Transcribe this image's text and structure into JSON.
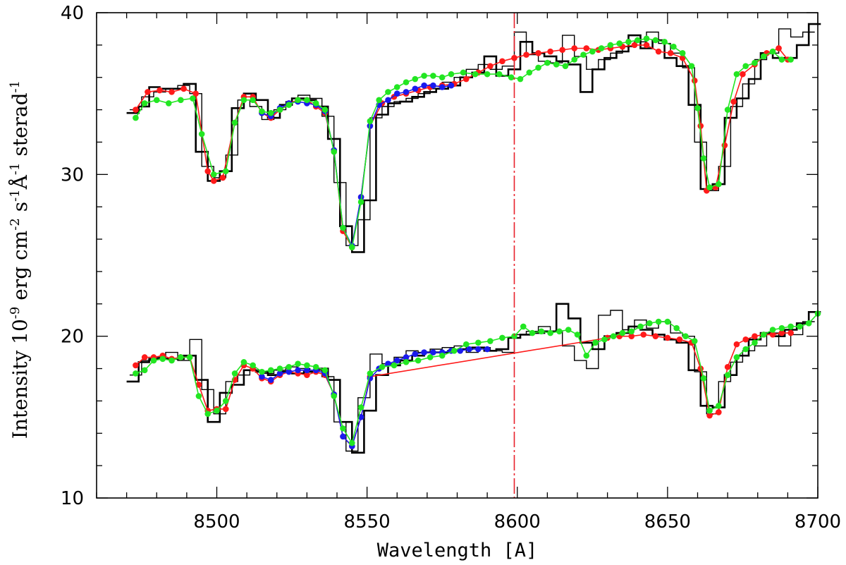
{
  "chart_data": {
    "type": "line",
    "xlabel": "Wavelength [A]",
    "ylabel": {
      "parts": [
        {
          "text": "Intensity 10"
        },
        {
          "text": "-9",
          "sup": true
        },
        {
          "text": " erg cm"
        },
        {
          "text": "-2",
          "sup": true
        },
        {
          "text": " s"
        },
        {
          "text": "-1",
          "sup": true
        },
        {
          "text": "Å"
        },
        {
          "text": "-1",
          "sup": true
        },
        {
          "text": " sterad"
        },
        {
          "text": "-1",
          "sup": true
        }
      ]
    },
    "xlim": [
      8460,
      8700
    ],
    "ylim": [
      10,
      40
    ],
    "x_ticks": [
      8500,
      8550,
      8600,
      8650,
      8700
    ],
    "y_ticks": [
      10,
      20,
      30,
      40
    ],
    "x_minor_step": 10,
    "y_minor_step": 2,
    "vline": {
      "x": 8599,
      "color": "#e8202a",
      "style": "dashed"
    },
    "colors": {
      "red": "#ff1a1a",
      "green": "#22e622",
      "blue": "#1a1aee",
      "black": "#000000"
    },
    "series": [
      {
        "color": "#000000",
        "width": 2.6,
        "style": "step",
        "x": [
          8472,
          8476,
          8479,
          8483,
          8487,
          8491,
          8495,
          8499,
          8503,
          8507,
          8511,
          8515,
          8519,
          8523,
          8527,
          8531,
          8535,
          8539,
          8543,
          8547,
          8551,
          8555,
          8559,
          8563,
          8567,
          8571,
          8575,
          8579,
          8583,
          8587,
          8591,
          8595,
          8599,
          8603,
          8607,
          8611,
          8615,
          8619,
          8623,
          8627,
          8631,
          8635,
          8639,
          8643,
          8647,
          8651,
          8655,
          8659,
          8663,
          8667,
          8671,
          8675,
          8679,
          8683,
          8687,
          8691,
          8695,
          8699
        ],
        "y": [
          33.8,
          34.2,
          35.4,
          35.3,
          35.3,
          35.6,
          31.4,
          29.6,
          30.2,
          34.1,
          35.0,
          34.6,
          33.5,
          34.3,
          34.7,
          34.6,
          34.2,
          32.2,
          26.8,
          25.2,
          28.4,
          33.7,
          34.4,
          34.5,
          34.8,
          35.1,
          35.3,
          35.5,
          36.0,
          36.3,
          37.3,
          36.1,
          36.5,
          38.2,
          37.5,
          37.3,
          37.0,
          36.8,
          35.1,
          36.5,
          37.2,
          37.6,
          38.6,
          37.8,
          38.3,
          37.2,
          36.7,
          34.3,
          29.1,
          29.4,
          33.5,
          34.7,
          35.9,
          37.5,
          37.2,
          37.2,
          38.0,
          39.3
        ]
      },
      {
        "color": "#000000",
        "width": 1.4,
        "style": "step",
        "x": [
          8473,
          8477,
          8481,
          8485,
          8489,
          8493,
          8497,
          8501,
          8505,
          8509,
          8513,
          8517,
          8521,
          8525,
          8529,
          8533,
          8537,
          8541,
          8545,
          8549,
          8553,
          8557,
          8561,
          8565,
          8569,
          8573,
          8577,
          8581,
          8585,
          8589,
          8593,
          8597,
          8601,
          8605,
          8609,
          8613,
          8617,
          8621,
          8625,
          8629,
          8633,
          8637,
          8641,
          8645,
          8649,
          8653,
          8657,
          8661,
          8665,
          8669,
          8673,
          8677,
          8681,
          8685,
          8689,
          8693,
          8697
        ],
        "y": [
          34.0,
          34.8,
          35.1,
          35.3,
          35.5,
          35.0,
          30.5,
          29.8,
          31.2,
          34.6,
          34.2,
          33.4,
          34.0,
          34.5,
          34.9,
          34.7,
          33.6,
          29.5,
          25.6,
          27.2,
          33.5,
          34.2,
          34.5,
          34.7,
          35.0,
          35.3,
          35.7,
          36.0,
          36.5,
          36.8,
          36.5,
          36.7,
          38.8,
          37.4,
          37.0,
          36.9,
          38.6,
          37.3,
          36.5,
          37.1,
          37.5,
          37.9,
          38.2,
          38.8,
          38.1,
          37.5,
          36.6,
          32.0,
          29.0,
          30.5,
          34.2,
          35.6,
          37.1,
          37.5,
          39.0,
          38.5,
          38.8
        ]
      },
      {
        "color": "#ff1a1a",
        "width": 1.6,
        "style": "line",
        "x": [
          8473,
          8477,
          8481,
          8485,
          8489,
          8493,
          8497,
          8499,
          8502,
          8506,
          8509,
          8512,
          8515,
          8518,
          8521,
          8524,
          8527,
          8530,
          8533,
          8536,
          8539,
          8542,
          8545,
          8548,
          8551,
          8555,
          8559,
          8563,
          8567,
          8571,
          8575,
          8579,
          8583,
          8587,
          8591,
          8595,
          8599,
          8603,
          8607,
          8611,
          8615,
          8619,
          8623,
          8627,
          8631,
          8635,
          8639,
          8643,
          8647,
          8651,
          8655,
          8659,
          8661,
          8663,
          8666,
          8669,
          8672,
          8675,
          8679,
          8683,
          8687,
          8690
        ],
        "y": [
          34.0,
          35.1,
          35.2,
          35.1,
          35.3,
          35.0,
          30.2,
          29.6,
          29.8,
          33.2,
          34.8,
          34.8,
          33.8,
          33.5,
          34.0,
          34.4,
          34.6,
          34.6,
          34.2,
          33.8,
          31.5,
          26.5,
          25.5,
          28.6,
          33.0,
          34.4,
          34.8,
          35.0,
          35.2,
          35.4,
          35.5,
          35.6,
          35.9,
          36.3,
          36.7,
          37.0,
          37.2,
          37.4,
          37.5,
          37.6,
          37.7,
          37.8,
          37.8,
          37.7,
          37.8,
          37.9,
          38.0,
          38.0,
          37.6,
          37.5,
          37.2,
          35.8,
          33.0,
          29.0,
          29.2,
          31.8,
          34.5,
          36.2,
          36.8,
          37.5,
          37.8,
          37.1
        ]
      },
      {
        "color": "#1a1aee",
        "width": 1.6,
        "style": "line",
        "x": [
          8515,
          8518,
          8521,
          8524,
          8527,
          8530,
          8533,
          8536,
          8539,
          8542,
          8545,
          8548,
          8551,
          8554,
          8557,
          8560,
          8563,
          8566,
          8569,
          8572,
          8575,
          8578
        ],
        "y": [
          33.8,
          33.6,
          34.1,
          34.4,
          34.5,
          34.4,
          34.3,
          33.9,
          31.5,
          26.7,
          25.6,
          28.6,
          33.0,
          34.3,
          34.6,
          35.0,
          35.1,
          35.3,
          35.5,
          35.5,
          35.4,
          35.5
        ]
      },
      {
        "color": "#22e622",
        "width": 1.6,
        "style": "line",
        "x": [
          8473,
          8476,
          8480,
          8484,
          8488,
          8492,
          8495,
          8499,
          8503,
          8506,
          8509,
          8512,
          8515,
          8518,
          8521,
          8524,
          8527,
          8530,
          8533,
          8536,
          8539,
          8542,
          8545,
          8548,
          8551,
          8554,
          8557,
          8560,
          8563,
          8566,
          8569,
          8572,
          8575,
          8578,
          8582,
          8586,
          8590,
          8594,
          8598,
          8601,
          8604,
          8607,
          8610,
          8613,
          8616,
          8619,
          8622,
          8625,
          8628,
          8631,
          8634,
          8637,
          8640,
          8643,
          8646,
          8649,
          8652,
          8655,
          8658,
          8660,
          8662,
          8664,
          8667,
          8670,
          8673,
          8676,
          8679,
          8682,
          8685,
          8688,
          8691
        ],
        "y": [
          33.5,
          34.4,
          34.6,
          34.4,
          34.6,
          34.7,
          32.5,
          30.0,
          30.2,
          33.2,
          34.6,
          34.6,
          33.9,
          33.8,
          34.0,
          34.3,
          34.6,
          34.6,
          34.4,
          34.0,
          31.4,
          26.7,
          25.5,
          28.3,
          33.3,
          34.6,
          35.1,
          35.4,
          35.7,
          35.9,
          36.1,
          36.1,
          36.0,
          36.2,
          36.3,
          36.2,
          36.2,
          36.2,
          36.0,
          35.9,
          36.3,
          36.6,
          36.9,
          36.8,
          36.7,
          37.1,
          37.4,
          37.6,
          37.8,
          38.0,
          38.1,
          38.2,
          38.3,
          38.4,
          38.3,
          38.2,
          37.9,
          37.5,
          36.7,
          34.1,
          31.0,
          29.2,
          29.4,
          34.0,
          36.2,
          36.7,
          36.9,
          37.3,
          37.6,
          37.1,
          37.1
        ]
      },
      {
        "color": "#000000",
        "width": 2.6,
        "style": "step",
        "x": [
          8472,
          8476,
          8479,
          8483,
          8487,
          8491,
          8495,
          8499,
          8503,
          8507,
          8511,
          8515,
          8519,
          8523,
          8527,
          8531,
          8535,
          8539,
          8543,
          8547,
          8551,
          8555,
          8559,
          8563,
          8567,
          8571,
          8575,
          8579,
          8583,
          8587,
          8591,
          8595,
          8599,
          8603,
          8607,
          8611,
          8615,
          8619,
          8623,
          8627,
          8631,
          8635,
          8639,
          8643,
          8647,
          8651,
          8655,
          8659,
          8663,
          8667,
          8671,
          8675,
          8679,
          8683,
          8687,
          8691,
          8695,
          8699
        ],
        "y": [
          17.2,
          18.4,
          18.6,
          18.6,
          18.6,
          18.8,
          17.3,
          14.7,
          16.5,
          17.0,
          17.9,
          17.8,
          17.6,
          17.8,
          17.7,
          17.8,
          18.0,
          17.3,
          14.7,
          12.8,
          15.4,
          17.6,
          18.2,
          18.5,
          18.8,
          19.0,
          19.0,
          19.1,
          19.2,
          19.3,
          19.1,
          19.2,
          19.9,
          20.1,
          20.2,
          20.3,
          22.0,
          21.1,
          19.6,
          19.2,
          20.0,
          20.2,
          20.6,
          20.4,
          20.1,
          19.8,
          19.6,
          17.9,
          15.7,
          15.6,
          17.6,
          18.8,
          19.8,
          20.2,
          20.0,
          20.4,
          20.8,
          21.5
        ]
      },
      {
        "color": "#000000",
        "width": 1.4,
        "style": "step",
        "x": [
          8473,
          8477,
          8481,
          8485,
          8489,
          8493,
          8497,
          8501,
          8505,
          8509,
          8513,
          8517,
          8521,
          8525,
          8529,
          8533,
          8537,
          8541,
          8545,
          8549,
          8553,
          8557,
          8561,
          8565,
          8569,
          8573,
          8577,
          8581,
          8585,
          8589,
          8593,
          8597,
          8601,
          8605,
          8609,
          8613,
          8617,
          8621,
          8625,
          8629,
          8633,
          8637,
          8641,
          8645,
          8649,
          8653,
          8657,
          8661,
          8665,
          8669,
          8673,
          8677,
          8681,
          8685,
          8689,
          8693,
          8697
        ],
        "y": [
          17.6,
          18.5,
          18.7,
          19.0,
          18.5,
          19.8,
          16.7,
          15.2,
          17.2,
          17.6,
          17.9,
          17.7,
          17.9,
          18.1,
          18.0,
          17.9,
          17.5,
          14.7,
          12.9,
          16.2,
          18.9,
          18.3,
          18.7,
          19.1,
          19.0,
          19.2,
          19.3,
          19.4,
          19.0,
          19.3,
          19.1,
          19.0,
          20.1,
          20.3,
          20.6,
          20.3,
          19.4,
          18.5,
          18.0,
          21.3,
          21.6,
          20.4,
          21.0,
          20.5,
          20.9,
          20.2,
          20.0,
          17.8,
          15.2,
          17.2,
          18.4,
          19.1,
          19.4,
          20.2,
          19.4,
          20.1,
          20.9
        ]
      },
      {
        "color": "#ff1a1a",
        "width": 1.6,
        "style": "line",
        "x": [
          8473,
          8476,
          8479,
          8482,
          8485,
          8488,
          8491,
          8494,
          8497,
          8500,
          8503,
          8506,
          8509,
          8512,
          8515,
          8518,
          8521,
          8524,
          8527,
          8530,
          8533,
          8536,
          8539,
          8542,
          8545,
          8548,
          8551,
          8630,
          8634,
          8638,
          8642,
          8646,
          8650,
          8654,
          8658,
          8661,
          8664,
          8667,
          8670,
          8673,
          8676,
          8679,
          8682,
          8685,
          8688,
          8691
        ],
        "y": [
          18.2,
          18.7,
          18.7,
          18.8,
          18.6,
          18.7,
          18.7,
          17.0,
          15.4,
          15.5,
          15.5,
          17.3,
          18.2,
          18.0,
          17.4,
          17.2,
          17.6,
          17.8,
          17.7,
          17.6,
          17.8,
          17.6,
          16.4,
          13.8,
          13.2,
          15.0,
          17.5,
          19.9,
          20.0,
          20.0,
          20.1,
          20.0,
          19.9,
          19.8,
          19.6,
          18.0,
          15.1,
          15.3,
          18.1,
          19.5,
          19.8,
          20.0,
          20.1,
          20.1,
          20.2,
          20.2
        ]
      },
      {
        "color": "#1a1aee",
        "width": 1.6,
        "style": "line",
        "x": [
          8515,
          8518,
          8521,
          8524,
          8527,
          8530,
          8533,
          8536,
          8539,
          8542,
          8545,
          8548,
          8551,
          8554,
          8557,
          8560,
          8563,
          8566,
          8569,
          8572,
          8575,
          8578,
          8581,
          8584,
          8587,
          8590
        ],
        "y": [
          17.5,
          17.3,
          17.7,
          17.8,
          17.9,
          17.9,
          17.9,
          17.7,
          16.4,
          13.8,
          13.2,
          15.0,
          17.4,
          18.0,
          18.3,
          18.5,
          18.7,
          18.9,
          19.0,
          19.0,
          19.0,
          19.1,
          19.1,
          19.2,
          19.2,
          19.2
        ]
      },
      {
        "color": "#22e622",
        "width": 1.6,
        "style": "line",
        "x": [
          8473,
          8476,
          8479,
          8482,
          8485,
          8488,
          8491,
          8494,
          8497,
          8500,
          8503,
          8506,
          8509,
          8512,
          8515,
          8518,
          8521,
          8524,
          8527,
          8530,
          8533,
          8536,
          8539,
          8542,
          8545,
          8548,
          8551,
          8555,
          8559,
          8563,
          8567,
          8571,
          8575,
          8579,
          8583,
          8587,
          8591,
          8595,
          8599,
          8602,
          8605,
          8608,
          8611,
          8614,
          8617,
          8620,
          8623,
          8626,
          8629,
          8632,
          8635,
          8638,
          8641,
          8644,
          8647,
          8650,
          8653,
          8656,
          8659,
          8662,
          8664,
          8667,
          8670,
          8673,
          8676,
          8679,
          8682,
          8685,
          8688,
          8691,
          8694,
          8697,
          8700
        ],
        "y": [
          17.7,
          17.9,
          18.5,
          18.6,
          18.5,
          18.7,
          18.7,
          16.3,
          15.2,
          15.4,
          16.0,
          17.7,
          18.4,
          18.2,
          17.8,
          17.9,
          18.0,
          18.1,
          18.3,
          18.2,
          18.1,
          17.9,
          16.3,
          14.3,
          13.4,
          15.6,
          17.7,
          18.1,
          18.2,
          18.4,
          18.5,
          18.7,
          18.8,
          19.1,
          19.5,
          19.6,
          19.7,
          19.9,
          20.0,
          20.6,
          20.2,
          20.3,
          20.2,
          20.3,
          20.4,
          20.1,
          18.8,
          19.6,
          19.8,
          20.0,
          20.2,
          20.3,
          20.6,
          20.8,
          20.9,
          20.9,
          20.5,
          20.0,
          19.7,
          17.4,
          15.4,
          15.7,
          17.6,
          18.7,
          19.2,
          19.6,
          20.1,
          20.4,
          20.5,
          20.6,
          20.6,
          20.8,
          21.4
        ]
      }
    ]
  }
}
